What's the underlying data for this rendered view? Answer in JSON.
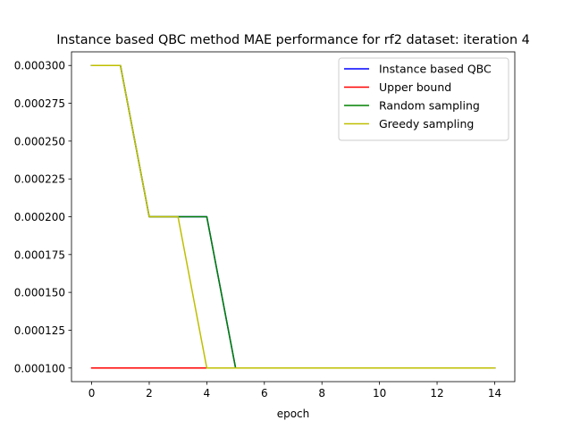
{
  "chart_data": {
    "type": "line",
    "title": "Instance based QBC method MAE performance for rf2 dataset: iteration 4",
    "xlabel": "epoch",
    "ylabel": "",
    "xlim": [
      -0.7,
      14.7
    ],
    "ylim": [
      9.1e-05,
      0.000309
    ],
    "xticks": [
      0,
      2,
      4,
      6,
      8,
      10,
      12,
      14
    ],
    "yticks": [
      0.0001,
      0.000125,
      0.00015,
      0.000175,
      0.0002,
      0.000225,
      0.00025,
      0.000275,
      0.0003
    ],
    "ytick_labels": [
      "0.000100",
      "0.000125",
      "0.000150",
      "0.000175",
      "0.000200",
      "0.000225",
      "0.000250",
      "0.000275",
      "0.000300"
    ],
    "grid": false,
    "legend_position": "top-right",
    "x": [
      0,
      1,
      2,
      3,
      4,
      5,
      6,
      7,
      8,
      9,
      10,
      11,
      12,
      13,
      14
    ],
    "series": [
      {
        "name": "Instance based QBC",
        "color": "#0000ff",
        "values": [
          0.0003,
          0.0003,
          0.0002,
          0.0002,
          0.0002,
          0.0001,
          0.0001,
          0.0001,
          0.0001,
          0.0001,
          0.0001,
          0.0001,
          0.0001,
          0.0001,
          0.0001
        ]
      },
      {
        "name": "Upper bound",
        "color": "#ff0000",
        "values": [
          0.0001,
          0.0001,
          0.0001,
          0.0001,
          0.0001,
          0.0001,
          0.0001,
          0.0001,
          0.0001,
          0.0001,
          0.0001,
          0.0001,
          0.0001,
          0.0001,
          0.0001
        ]
      },
      {
        "name": "Random sampling",
        "color": "#008000",
        "values": [
          0.0003,
          0.0003,
          0.0002,
          0.0002,
          0.0002,
          0.0001,
          0.0001,
          0.0001,
          0.0001,
          0.0001,
          0.0001,
          0.0001,
          0.0001,
          0.0001,
          0.0001
        ]
      },
      {
        "name": "Greedy sampling",
        "color": "#bfbf00",
        "values": [
          0.0003,
          0.0003,
          0.0002,
          0.0002,
          0.0001,
          0.0001,
          0.0001,
          0.0001,
          0.0001,
          0.0001,
          0.0001,
          0.0001,
          0.0001,
          0.0001,
          0.0001
        ]
      }
    ]
  }
}
